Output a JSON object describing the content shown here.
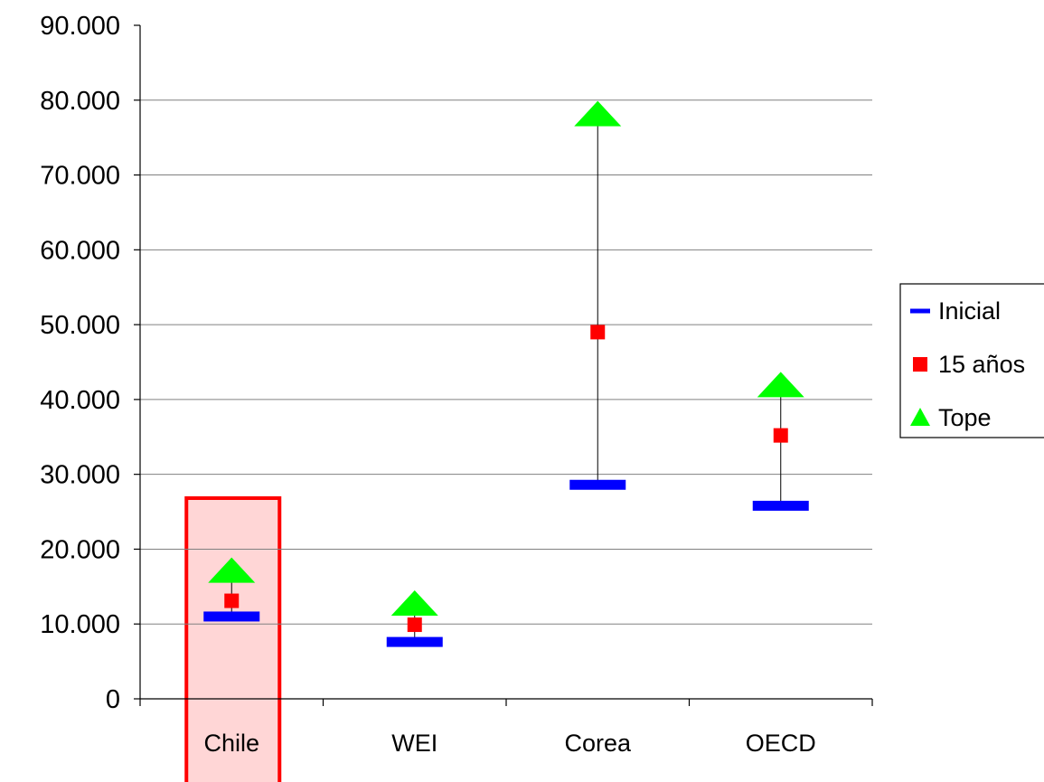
{
  "chart_data": {
    "type": "scatter",
    "title": "",
    "xlabel": "",
    "ylabel": "",
    "categories": [
      "Chile",
      "WEI",
      "Corea",
      "OECD"
    ],
    "highlight_category": "Chile",
    "ylim": [
      0,
      90000
    ],
    "y_ticks": [
      0,
      10000,
      20000,
      30000,
      40000,
      50000,
      60000,
      70000,
      80000,
      90000
    ],
    "y_tick_labels": [
      "0",
      "10.000",
      "20.000",
      "30.000",
      "40.000",
      "50.000",
      "60.000",
      "70.000",
      "80.000",
      "90.000"
    ],
    "grid": "horizontal",
    "legend_position": "right",
    "series": [
      {
        "name": "Inicial",
        "marker": "dash",
        "color": "#0000ff",
        "values": [
          11000,
          7600,
          28600,
          25800
        ]
      },
      {
        "name": "15 años",
        "marker": "square",
        "color": "#ff0000",
        "values": [
          13100,
          9900,
          49000,
          35200
        ]
      },
      {
        "name": "Tope",
        "marker": "triangle",
        "color": "#00ff00",
        "values": [
          17200,
          12800,
          78200,
          42000
        ]
      }
    ],
    "colors": {
      "highlight_fill": "#ffd6d6",
      "highlight_stroke": "#ff0000",
      "axis": "#000000",
      "grid": "#808080",
      "range_line": "#000000"
    }
  }
}
